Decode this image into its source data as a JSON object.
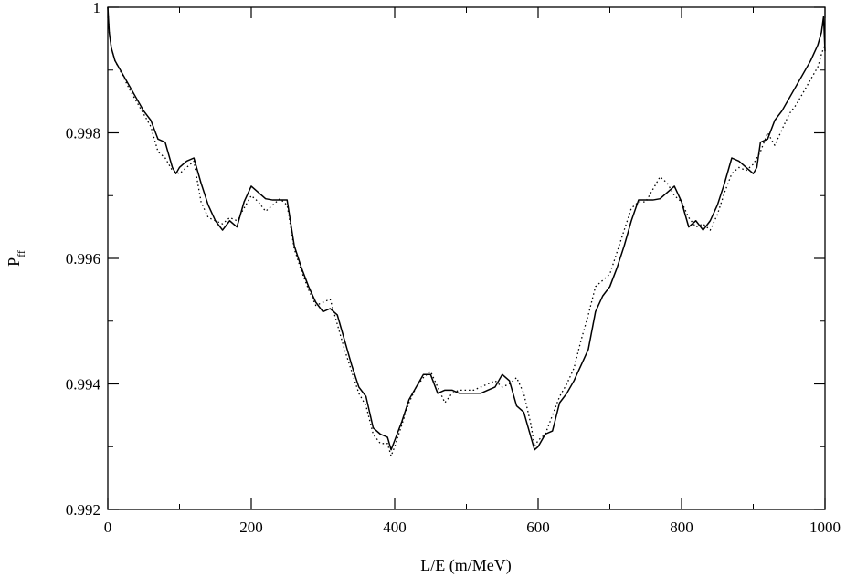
{
  "chart_data": {
    "type": "line",
    "title": "",
    "xlabel": "L/E (m/MeV)",
    "ylabel": "P",
    "ylabel_subscript": "ff",
    "xlim": [
      0,
      1000
    ],
    "ylim": [
      0.992,
      1.0
    ],
    "xticks": [
      0,
      200,
      400,
      600,
      800,
      1000
    ],
    "xtick_labels": [
      "0",
      "200",
      "400",
      "600",
      "800",
      "1000"
    ],
    "yticks": [
      0.992,
      0.994,
      0.996,
      0.998,
      1.0
    ],
    "ytick_labels": [
      "0.992",
      "0.994",
      "0.996",
      "0.998",
      "1"
    ],
    "minor_x_step": 100,
    "minor_y_step": 0.001,
    "grid": false,
    "series": [
      {
        "style": "solid",
        "color": "#000000",
        "x": [
          0,
          2,
          5,
          10,
          20,
          30,
          40,
          50,
          60,
          70,
          80,
          90,
          95,
          100,
          110,
          120,
          130,
          140,
          150,
          160,
          170,
          180,
          190,
          200,
          210,
          220,
          230,
          240,
          250,
          260,
          270,
          280,
          290,
          300,
          310,
          320,
          330,
          340,
          350,
          360,
          370,
          380,
          390,
          395,
          400,
          410,
          420,
          430,
          440,
          450,
          460,
          470,
          480,
          490,
          500,
          510,
          520,
          530,
          540,
          550,
          560,
          570,
          580,
          590,
          595,
          600,
          610,
          620,
          630,
          640,
          650,
          660,
          670,
          680,
          690,
          700,
          710,
          720,
          730,
          740,
          750,
          760,
          770,
          780,
          790,
          800,
          810,
          820,
          830,
          840,
          850,
          860,
          870,
          880,
          890,
          900,
          905,
          910,
          920,
          930,
          940,
          950,
          960,
          970,
          980,
          990,
          995,
          998,
          1000
        ],
        "y": [
          1.0,
          0.9996,
          0.99935,
          0.99915,
          0.99895,
          0.99875,
          0.99855,
          0.99835,
          0.9982,
          0.9979,
          0.99785,
          0.99745,
          0.99735,
          0.99745,
          0.99755,
          0.9976,
          0.9972,
          0.99685,
          0.9966,
          0.99645,
          0.9966,
          0.9965,
          0.9969,
          0.99715,
          0.99705,
          0.99695,
          0.99693,
          0.99693,
          0.99693,
          0.9962,
          0.99585,
          0.99555,
          0.9953,
          0.99515,
          0.9952,
          0.9951,
          0.9947,
          0.9943,
          0.99395,
          0.9938,
          0.9933,
          0.9932,
          0.99315,
          0.99295,
          0.9931,
          0.9934,
          0.99375,
          0.99395,
          0.99415,
          0.99415,
          0.99385,
          0.9939,
          0.9939,
          0.99385,
          0.99385,
          0.99385,
          0.99385,
          0.9939,
          0.99395,
          0.99415,
          0.99405,
          0.99365,
          0.99355,
          0.99315,
          0.99295,
          0.993,
          0.9932,
          0.99325,
          0.9937,
          0.99385,
          0.99405,
          0.9943,
          0.99455,
          0.99515,
          0.9954,
          0.99555,
          0.99585,
          0.9962,
          0.9966,
          0.99693,
          0.99693,
          0.99693,
          0.99695,
          0.99705,
          0.99715,
          0.9969,
          0.9965,
          0.9966,
          0.99645,
          0.9966,
          0.99685,
          0.9972,
          0.9976,
          0.99755,
          0.99745,
          0.99735,
          0.99745,
          0.99785,
          0.9979,
          0.9982,
          0.99835,
          0.99855,
          0.99875,
          0.99895,
          0.99915,
          0.9994,
          0.9996,
          0.99985,
          0.9993
        ]
      },
      {
        "style": "dotted",
        "color": "#000000",
        "x": [
          0,
          2,
          5,
          10,
          20,
          30,
          40,
          50,
          60,
          70,
          80,
          90,
          100,
          110,
          120,
          130,
          140,
          150,
          160,
          170,
          180,
          190,
          200,
          210,
          220,
          230,
          240,
          250,
          260,
          270,
          280,
          290,
          300,
          310,
          320,
          330,
          340,
          350,
          360,
          370,
          380,
          390,
          395,
          400,
          410,
          420,
          430,
          440,
          450,
          460,
          470,
          480,
          490,
          500,
          510,
          520,
          530,
          540,
          550,
          560,
          570,
          580,
          590,
          595,
          600,
          610,
          620,
          630,
          640,
          650,
          660,
          670,
          680,
          690,
          700,
          710,
          720,
          730,
          740,
          750,
          760,
          770,
          780,
          790,
          800,
          810,
          820,
          830,
          840,
          850,
          860,
          870,
          880,
          890,
          900,
          910,
          920,
          930,
          940,
          950,
          960,
          970,
          980,
          990,
          995,
          998,
          1000
        ],
        "y": [
          1.0,
          0.9996,
          0.99935,
          0.99915,
          0.99893,
          0.9987,
          0.9985,
          0.9983,
          0.9981,
          0.9977,
          0.9976,
          0.9974,
          0.99735,
          0.99745,
          0.99755,
          0.9969,
          0.99665,
          0.9966,
          0.99655,
          0.99665,
          0.9966,
          0.9968,
          0.997,
          0.9969,
          0.99675,
          0.99685,
          0.99695,
          0.99685,
          0.99615,
          0.9958,
          0.9955,
          0.99525,
          0.9953,
          0.99535,
          0.99495,
          0.99455,
          0.9942,
          0.99385,
          0.99365,
          0.9932,
          0.99305,
          0.99305,
          0.99285,
          0.993,
          0.99335,
          0.9937,
          0.99395,
          0.9941,
          0.9942,
          0.99395,
          0.9937,
          0.99385,
          0.9939,
          0.9939,
          0.9939,
          0.99395,
          0.994,
          0.99405,
          0.99395,
          0.994,
          0.9941,
          0.99385,
          0.99335,
          0.993,
          0.9931,
          0.9932,
          0.9935,
          0.9938,
          0.994,
          0.99425,
          0.9947,
          0.9951,
          0.99555,
          0.99565,
          0.99575,
          0.9961,
          0.99645,
          0.9968,
          0.9969,
          0.9969,
          0.9971,
          0.9973,
          0.9972,
          0.997,
          0.9969,
          0.99665,
          0.9965,
          0.99655,
          0.99645,
          0.9967,
          0.99705,
          0.99735,
          0.99745,
          0.9974,
          0.9975,
          0.9977,
          0.998,
          0.9978,
          0.99805,
          0.9983,
          0.99845,
          0.99865,
          0.99885,
          0.99905,
          0.99925,
          0.99935,
          0.9994
        ]
      }
    ]
  }
}
